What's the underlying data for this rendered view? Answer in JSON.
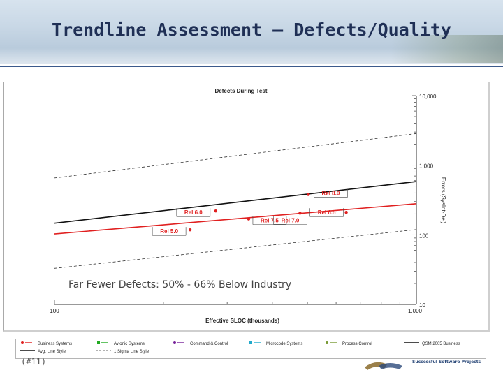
{
  "slide": {
    "title": "Trendline Assessment – Defects/Quality",
    "footer_page": "(#11)",
    "footer_brand": "Successful Software Projects"
  },
  "chart_data": {
    "type": "scatter",
    "title": "Defects During Test",
    "xlabel": "Effective SLOC (thousands)",
    "ylabel": "Errors (SysInt-Del)",
    "x_scale": "log",
    "y_scale": "log",
    "xlim": [
      100,
      1000
    ],
    "ylim": [
      10,
      10000
    ],
    "x_tick_labels": [
      "100",
      "1,000"
    ],
    "y_tick_labels": [
      "10,000",
      "1,000",
      "100",
      "10"
    ],
    "annotation": "Far Fewer Defects:  50% - 66% Below Industry",
    "grid": false,
    "legend_position": "bottom",
    "colors": {
      "business": "#e02020",
      "trend": "#111111",
      "avionic": "#22aa22",
      "command": "#772299",
      "microcode": "#22aacc",
      "process": "#779933",
      "grid_dot": "#999999"
    },
    "points": [
      {
        "label": "Rel 5.0",
        "x": 237,
        "y": 118
      },
      {
        "label": "Rel 6.0",
        "x": 279,
        "y": 220
      },
      {
        "label": "Rel 7.5",
        "x": 344,
        "y": 169
      },
      {
        "label": "Rel 7.0",
        "x": 477,
        "y": 205
      },
      {
        "label": "Rel 8.0",
        "x": 503,
        "y": 380
      },
      {
        "label": "Rel 6.5",
        "x": 640,
        "y": 210
      }
    ],
    "lines": [
      {
        "name": "QSM 2005 Business",
        "style": "solid",
        "color": "#111111",
        "width": 1.6,
        "x": [
          100,
          1000
        ],
        "y": [
          147,
          582
        ]
      },
      {
        "name": "Avg. Line Style",
        "style": "solid",
        "color": "#e02020",
        "width": 1.6,
        "x": [
          100,
          1000
        ],
        "y": [
          103,
          280
        ]
      },
      {
        "name": "1 Sigma Line Style",
        "style": "dash",
        "color": "#333333",
        "width": 0.8,
        "x": [
          100,
          1000
        ],
        "y": [
          656,
          2850
        ]
      },
      {
        "name": "1 Sigma Line Style",
        "style": "dash",
        "color": "#333333",
        "width": 0.8,
        "x": [
          100,
          1000
        ],
        "y": [
          33,
          119
        ]
      }
    ],
    "legend": [
      {
        "label": "Business Systems",
        "marker": "dot-dash",
        "color": "#e02020"
      },
      {
        "label": "Avionic Systems",
        "marker": "sq-dash",
        "color": "#22aa22"
      },
      {
        "label": "Command & Control",
        "marker": "dot-dash",
        "color": "#772299"
      },
      {
        "label": "Microcode Systems",
        "marker": "sq-dash",
        "color": "#22aacc"
      },
      {
        "label": "Process Control",
        "marker": "dot-dash",
        "color": "#779933"
      },
      {
        "label": "QSM 2005 Business",
        "marker": "line",
        "color": "#111111"
      },
      {
        "label": "Avg. Line Style",
        "marker": "line",
        "color": "#111111"
      },
      {
        "label": "1 Sigma Line Style",
        "marker": "dash-line",
        "color": "#333333"
      }
    ]
  }
}
